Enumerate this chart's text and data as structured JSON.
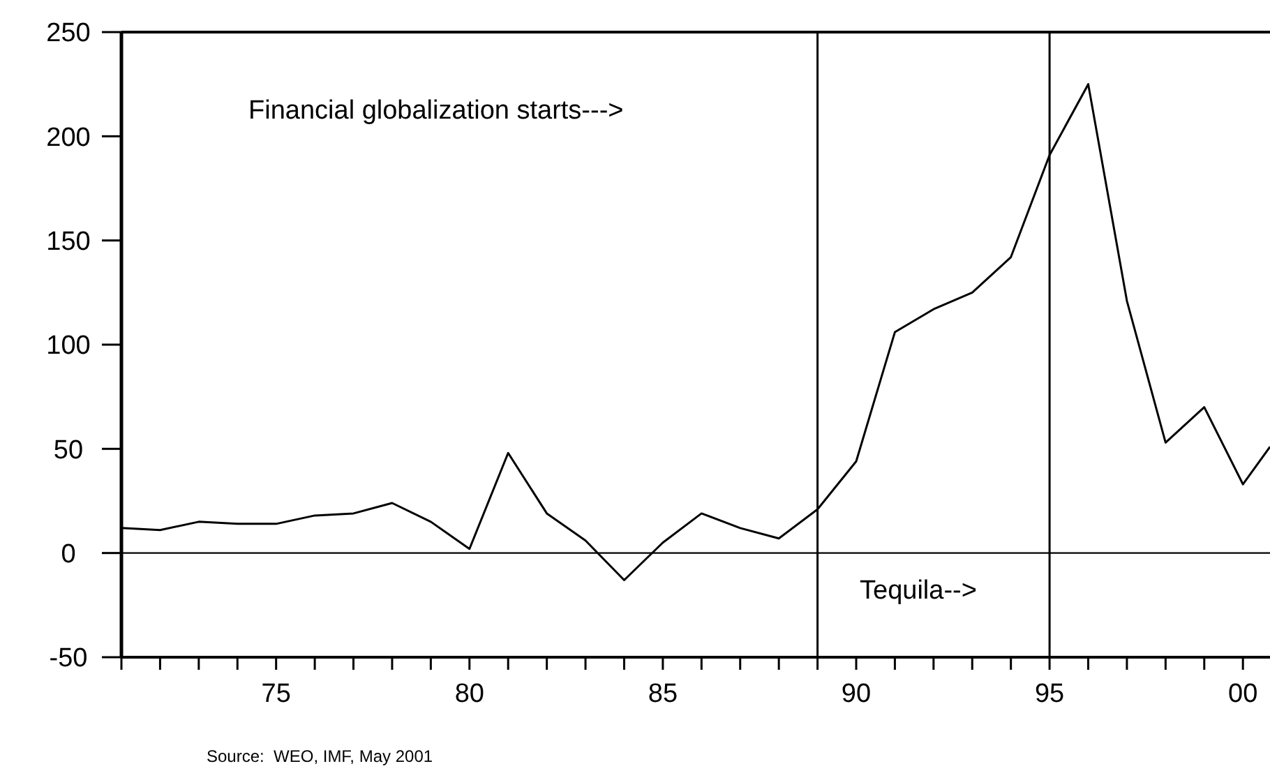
{
  "chart_data": {
    "type": "line",
    "x": [
      1971,
      1972,
      1973,
      1974,
      1975,
      1976,
      1977,
      1978,
      1979,
      1980,
      1981,
      1982,
      1983,
      1984,
      1985,
      1986,
      1987,
      1988,
      1989,
      1990,
      1991,
      1992,
      1993,
      1994,
      1995,
      1996,
      1997,
      1998,
      1999,
      2000,
      2000.7
    ],
    "series": [
      {
        "color": "#000000",
        "values": [
          12,
          11,
          15,
          14,
          14,
          18,
          19,
          24,
          15,
          2,
          48,
          19,
          6,
          -13,
          5,
          19,
          12,
          7,
          21,
          44,
          106,
          117,
          125,
          142,
          191,
          225,
          121,
          53,
          70,
          33,
          51
        ]
      }
    ],
    "xlim": [
      1971,
      2000.7
    ],
    "xticks": [
      {
        "value": 1971,
        "label": null
      },
      {
        "value": 1972,
        "label": null
      },
      {
        "value": 1973,
        "label": null
      },
      {
        "value": 1974,
        "label": null
      },
      {
        "value": 1975,
        "label": "75"
      },
      {
        "value": 1976,
        "label": null
      },
      {
        "value": 1977,
        "label": null
      },
      {
        "value": 1978,
        "label": null
      },
      {
        "value": 1979,
        "label": null
      },
      {
        "value": 1980,
        "label": "80"
      },
      {
        "value": 1981,
        "label": null
      },
      {
        "value": 1982,
        "label": null
      },
      {
        "value": 1983,
        "label": null
      },
      {
        "value": 1984,
        "label": null
      },
      {
        "value": 1985,
        "label": "85"
      },
      {
        "value": 1986,
        "label": null
      },
      {
        "value": 1987,
        "label": null
      },
      {
        "value": 1988,
        "label": null
      },
      {
        "value": 1989,
        "label": null
      },
      {
        "value": 1990,
        "label": "90"
      },
      {
        "value": 1991,
        "label": null
      },
      {
        "value": 1992,
        "label": null
      },
      {
        "value": 1993,
        "label": null
      },
      {
        "value": 1994,
        "label": null
      },
      {
        "value": 1995,
        "label": "95"
      },
      {
        "value": 1996,
        "label": null
      },
      {
        "value": 1997,
        "label": null
      },
      {
        "value": 1998,
        "label": null
      },
      {
        "value": 1999,
        "label": null
      },
      {
        "value": 2000,
        "label": "00"
      }
    ],
    "ylim": [
      -50,
      250
    ],
    "yticks": [
      -50,
      0,
      50,
      100,
      150,
      200,
      250
    ],
    "ref_lines": [
      {
        "axis": "y",
        "value": 0
      },
      {
        "axis": "x",
        "value": 1989
      },
      {
        "axis": "x",
        "value": 1995
      }
    ],
    "annotations": [
      "Financial globalization starts--->",
      "Tequila-->",
      "Source:  WEO, IMF, May 2001"
    ],
    "grid": false,
    "marker": "none",
    "line_style": "solid"
  }
}
